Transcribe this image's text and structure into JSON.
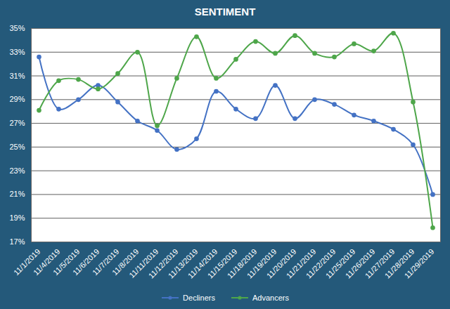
{
  "chart_data": {
    "type": "line",
    "title": "SENTIMENT",
    "categories": [
      "11/1/2019",
      "11/4/2019",
      "11/5/2019",
      "11/6/2019",
      "11/7/2019",
      "11/8/2019",
      "11/11/2019",
      "11/12/2019",
      "11/13/2019",
      "11/14/2019",
      "11/15/2019",
      "11/18/2019",
      "11/19/2019",
      "11/20/2019",
      "11/21/2019",
      "11/22/2019",
      "11/25/2019",
      "11/26/2019",
      "11/27/2019",
      "11/28/2019",
      "11/29/2019"
    ],
    "series": [
      {
        "name": "Decliners",
        "color": "#4472c4",
        "marker": "circle",
        "values": [
          32.6,
          28.2,
          29.0,
          30.2,
          28.8,
          27.2,
          26.4,
          24.8,
          25.7,
          29.7,
          28.2,
          27.4,
          30.2,
          27.4,
          29.0,
          28.6,
          27.7,
          27.2,
          26.5,
          25.2,
          21.0
        ]
      },
      {
        "name": "Advancers",
        "color": "#4ea64a",
        "marker": "circle",
        "values": [
          28.1,
          30.6,
          30.7,
          29.9,
          31.2,
          33.0,
          26.8,
          30.8,
          34.3,
          30.8,
          32.4,
          33.9,
          32.9,
          34.4,
          32.9,
          32.6,
          33.7,
          33.1,
          34.6,
          28.8,
          18.2
        ]
      }
    ],
    "ylim": [
      17,
      35
    ],
    "yticks": [
      {
        "value": 17,
        "label": "17%"
      },
      {
        "value": 19,
        "label": "19%"
      },
      {
        "value": 21,
        "label": "21%"
      },
      {
        "value": 23,
        "label": "23%"
      },
      {
        "value": 25,
        "label": "25%"
      },
      {
        "value": 27,
        "label": "27%"
      },
      {
        "value": 29,
        "label": "29%"
      },
      {
        "value": 31,
        "label": "31%"
      },
      {
        "value": 33,
        "label": "33%"
      },
      {
        "value": 35,
        "label": "35%"
      }
    ],
    "grid": true,
    "legend": "bottom"
  }
}
